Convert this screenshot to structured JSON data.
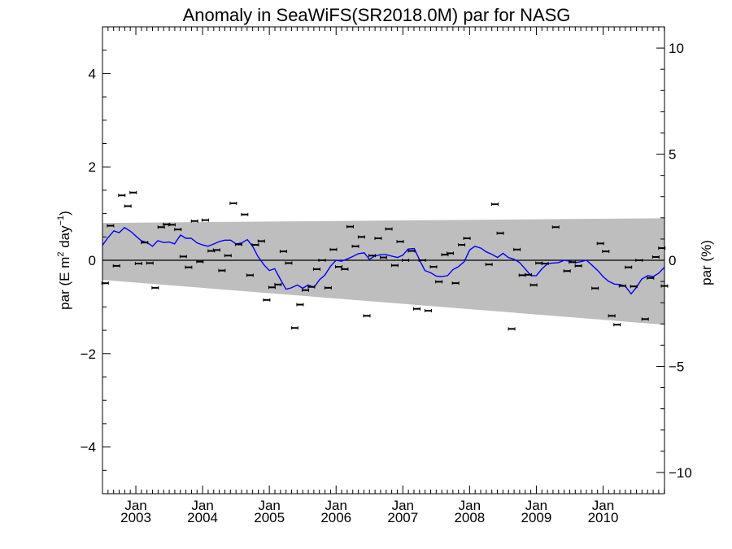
{
  "chart_data": {
    "type": "scatter",
    "title": "Anomaly in SeaWiFS(SR2018.0M) par for NASG",
    "ylabel_left": "par (E m² day⁻¹)",
    "ylabel_left_parts": {
      "base": "par (E m",
      "exp1": "2",
      "mid": " day",
      "exp2": "−1",
      "end": ")"
    },
    "ylabel_right": "par (%)",
    "xlim": [
      2002.5,
      2010.92
    ],
    "ylim": [
      -5,
      5
    ],
    "ylim_right": [
      -11.0,
      11.0
    ],
    "yticks_left": [
      {
        "value": -4,
        "label": "−4"
      },
      {
        "value": -2,
        "label": "−2"
      },
      {
        "value": 0,
        "label": "0"
      },
      {
        "value": 2,
        "label": "2"
      },
      {
        "value": 4,
        "label": "4"
      }
    ],
    "yticks_right": [
      {
        "value": -10,
        "label": "−10"
      },
      {
        "value": -5,
        "label": "−5"
      },
      {
        "value": 0,
        "label": "0"
      },
      {
        "value": 5,
        "label": "5"
      },
      {
        "value": 10,
        "label": "10"
      }
    ],
    "xticks": [
      {
        "value": 2003.0,
        "month": "Jan",
        "year": "2003"
      },
      {
        "value": 2004.0,
        "month": "Jan",
        "year": "2004"
      },
      {
        "value": 2005.0,
        "month": "Jan",
        "year": "2005"
      },
      {
        "value": 2006.0,
        "month": "Jan",
        "year": "2006"
      },
      {
        "value": 2007.0,
        "month": "Jan",
        "year": "2007"
      },
      {
        "value": 2008.0,
        "month": "Jan",
        "year": "2008"
      },
      {
        "value": 2009.0,
        "month": "Jan",
        "year": "2009"
      },
      {
        "value": 2010.0,
        "month": "Jan",
        "year": "2010"
      }
    ],
    "band": {
      "x": [
        2002.5,
        2010.92
      ],
      "upper": [
        0.8,
        0.9
      ],
      "lower": [
        -0.42,
        -1.38
      ]
    },
    "zero_line": 0,
    "points": [
      {
        "x": 2002.54,
        "y": -0.49
      },
      {
        "x": 2002.62,
        "y": 0.74
      },
      {
        "x": 2002.71,
        "y": -0.12
      },
      {
        "x": 2002.79,
        "y": 1.39
      },
      {
        "x": 2002.88,
        "y": 1.16
      },
      {
        "x": 2002.96,
        "y": 1.45
      },
      {
        "x": 2003.04,
        "y": -0.07
      },
      {
        "x": 2003.13,
        "y": 0.38
      },
      {
        "x": 2003.21,
        "y": -0.06
      },
      {
        "x": 2003.29,
        "y": -0.59
      },
      {
        "x": 2003.38,
        "y": 0.71
      },
      {
        "x": 2003.46,
        "y": 0.77
      },
      {
        "x": 2003.54,
        "y": 0.76
      },
      {
        "x": 2003.63,
        "y": 0.66
      },
      {
        "x": 2003.71,
        "y": 0.08
      },
      {
        "x": 2003.79,
        "y": -0.15
      },
      {
        "x": 2003.88,
        "y": 0.84
      },
      {
        "x": 2003.96,
        "y": -0.03
      },
      {
        "x": 2004.04,
        "y": 0.86
      },
      {
        "x": 2004.13,
        "y": 0.2
      },
      {
        "x": 2004.21,
        "y": 0.22
      },
      {
        "x": 2004.29,
        "y": -0.22
      },
      {
        "x": 2004.38,
        "y": 0.1
      },
      {
        "x": 2004.46,
        "y": 1.22
      },
      {
        "x": 2004.54,
        "y": 0.34
      },
      {
        "x": 2004.63,
        "y": 0.98
      },
      {
        "x": 2004.71,
        "y": -0.32
      },
      {
        "x": 2004.79,
        "y": 0.33
      },
      {
        "x": 2004.88,
        "y": 0.41
      },
      {
        "x": 2004.96,
        "y": -0.85
      },
      {
        "x": 2005.04,
        "y": -0.58
      },
      {
        "x": 2005.13,
        "y": -0.52
      },
      {
        "x": 2005.21,
        "y": 0.19
      },
      {
        "x": 2005.29,
        "y": -0.06
      },
      {
        "x": 2005.38,
        "y": -1.45
      },
      {
        "x": 2005.46,
        "y": -0.95
      },
      {
        "x": 2005.54,
        "y": -0.64
      },
      {
        "x": 2005.63,
        "y": -0.57
      },
      {
        "x": 2005.71,
        "y": -0.19
      },
      {
        "x": 2005.79,
        "y": 0.0
      },
      {
        "x": 2005.88,
        "y": -0.59
      },
      {
        "x": 2005.96,
        "y": 0.23
      },
      {
        "x": 2006.04,
        "y": -0.14
      },
      {
        "x": 2006.13,
        "y": -0.19
      },
      {
        "x": 2006.21,
        "y": 0.72
      },
      {
        "x": 2006.29,
        "y": 0.3
      },
      {
        "x": 2006.38,
        "y": 0.5
      },
      {
        "x": 2006.46,
        "y": -1.19
      },
      {
        "x": 2006.54,
        "y": 0.1
      },
      {
        "x": 2006.63,
        "y": 0.47
      },
      {
        "x": 2006.71,
        "y": 0.06
      },
      {
        "x": 2006.79,
        "y": 0.67
      },
      {
        "x": 2006.88,
        "y": -0.11
      },
      {
        "x": 2006.96,
        "y": 0.4
      },
      {
        "x": 2007.04,
        "y": 0.0
      },
      {
        "x": 2007.13,
        "y": 0.2
      },
      {
        "x": 2007.21,
        "y": -1.04
      },
      {
        "x": 2007.29,
        "y": 0.0
      },
      {
        "x": 2007.38,
        "y": -1.08
      },
      {
        "x": 2007.46,
        "y": -0.14
      },
      {
        "x": 2007.54,
        "y": -0.46
      },
      {
        "x": 2007.63,
        "y": 0.12
      },
      {
        "x": 2007.71,
        "y": 0.15
      },
      {
        "x": 2007.79,
        "y": -0.49
      },
      {
        "x": 2007.88,
        "y": 0.33
      },
      {
        "x": 2007.96,
        "y": 0.47
      },
      {
        "x": 2008.38,
        "y": 1.2
      },
      {
        "x": 2008.46,
        "y": 0.58
      },
      {
        "x": 2008.29,
        "y": -0.09
      },
      {
        "x": 2008.63,
        "y": -1.47
      },
      {
        "x": 2008.71,
        "y": 0.23
      },
      {
        "x": 2008.79,
        "y": -0.32
      },
      {
        "x": 2008.88,
        "y": -0.31
      },
      {
        "x": 2008.96,
        "y": -0.53
      },
      {
        "x": 2009.04,
        "y": -0.06
      },
      {
        "x": 2009.13,
        "y": -0.07
      },
      {
        "x": 2009.29,
        "y": 0.71
      },
      {
        "x": 2009.46,
        "y": -0.23
      },
      {
        "x": 2009.54,
        "y": -0.04
      },
      {
        "x": 2009.63,
        "y": -0.12
      },
      {
        "x": 2009.88,
        "y": -0.6
      },
      {
        "x": 2009.96,
        "y": 0.36
      },
      {
        "x": 2010.04,
        "y": 0.19
      },
      {
        "x": 2010.13,
        "y": -1.19
      },
      {
        "x": 2010.21,
        "y": -1.38
      },
      {
        "x": 2010.29,
        "y": -0.55
      },
      {
        "x": 2010.38,
        "y": -0.15
      },
      {
        "x": 2010.46,
        "y": -0.56
      },
      {
        "x": 2010.54,
        "y": 0.0
      },
      {
        "x": 2010.63,
        "y": -1.26
      },
      {
        "x": 2010.71,
        "y": -0.38
      },
      {
        "x": 2010.79,
        "y": 0.07
      },
      {
        "x": 2010.88,
        "y": 0.26
      },
      {
        "x": 2010.92,
        "y": -0.55
      }
    ],
    "running_mean": {
      "color": "#0000ff",
      "x": [
        2002.5,
        2002.58,
        2002.67,
        2002.75,
        2002.83,
        2002.92,
        2003.0,
        2003.08,
        2003.17,
        2003.25,
        2003.33,
        2003.42,
        2003.5,
        2003.58,
        2003.67,
        2003.75,
        2003.83,
        2003.92,
        2004.0,
        2004.08,
        2004.17,
        2004.25,
        2004.33,
        2004.42,
        2004.5,
        2004.58,
        2004.67,
        2004.75,
        2004.83,
        2004.92,
        2005.0,
        2005.08,
        2005.17,
        2005.25,
        2005.33,
        2005.42,
        2005.5,
        2005.58,
        2005.67,
        2005.75,
        2005.83,
        2005.92,
        2006.0,
        2006.08,
        2006.17,
        2006.25,
        2006.33,
        2006.42,
        2006.5,
        2006.58,
        2006.67,
        2006.75,
        2006.83,
        2006.92,
        2007.0,
        2007.08,
        2007.17,
        2007.25,
        2007.33,
        2007.42,
        2007.5,
        2007.58,
        2007.67,
        2007.75,
        2007.83,
        2007.92,
        2008.0,
        2008.08,
        2008.17,
        2008.25,
        2008.33,
        2008.42,
        2008.5,
        2008.58,
        2008.67,
        2008.75,
        2008.83,
        2008.92,
        2009.0,
        2009.08,
        2009.17,
        2009.25,
        2009.33,
        2009.42,
        2009.5,
        2009.58,
        2009.67,
        2009.75,
        2009.83,
        2009.92,
        2010.0,
        2010.08,
        2010.17,
        2010.25,
        2010.33,
        2010.42,
        2010.5,
        2010.58,
        2010.67,
        2010.75,
        2010.83,
        2010.92
      ],
      "y": [
        0.32,
        0.48,
        0.63,
        0.59,
        0.7,
        0.62,
        0.52,
        0.42,
        0.38,
        0.3,
        0.42,
        0.38,
        0.39,
        0.35,
        0.54,
        0.47,
        0.47,
        0.37,
        0.33,
        0.3,
        0.35,
        0.4,
        0.43,
        0.43,
        0.35,
        0.37,
        0.44,
        0.3,
        0.08,
        -0.1,
        -0.22,
        -0.18,
        -0.42,
        -0.62,
        -0.59,
        -0.53,
        -0.6,
        -0.53,
        -0.58,
        -0.42,
        -0.32,
        -0.12,
        0.0,
        -0.02,
        0.03,
        0.08,
        0.14,
        0.16,
        0.02,
        0.09,
        0.12,
        0.12,
        0.09,
        0.06,
        0.11,
        0.24,
        0.25,
        0.01,
        -0.22,
        -0.27,
        -0.34,
        -0.35,
        -0.33,
        -0.2,
        -0.14,
        -0.03,
        0.22,
        0.3,
        0.26,
        0.18,
        0.13,
        0.06,
        0.15,
        0.06,
        0.02,
        -0.05,
        -0.18,
        -0.33,
        -0.33,
        -0.19,
        -0.07,
        -0.06,
        -0.05,
        0.0,
        -0.02,
        -0.05,
        -0.03,
        0.0,
        -0.1,
        -0.22,
        -0.35,
        -0.45,
        -0.51,
        -0.52,
        -0.55,
        -0.72,
        -0.58,
        -0.4,
        -0.33,
        -0.35,
        -0.28,
        -0.15
      ]
    }
  }
}
